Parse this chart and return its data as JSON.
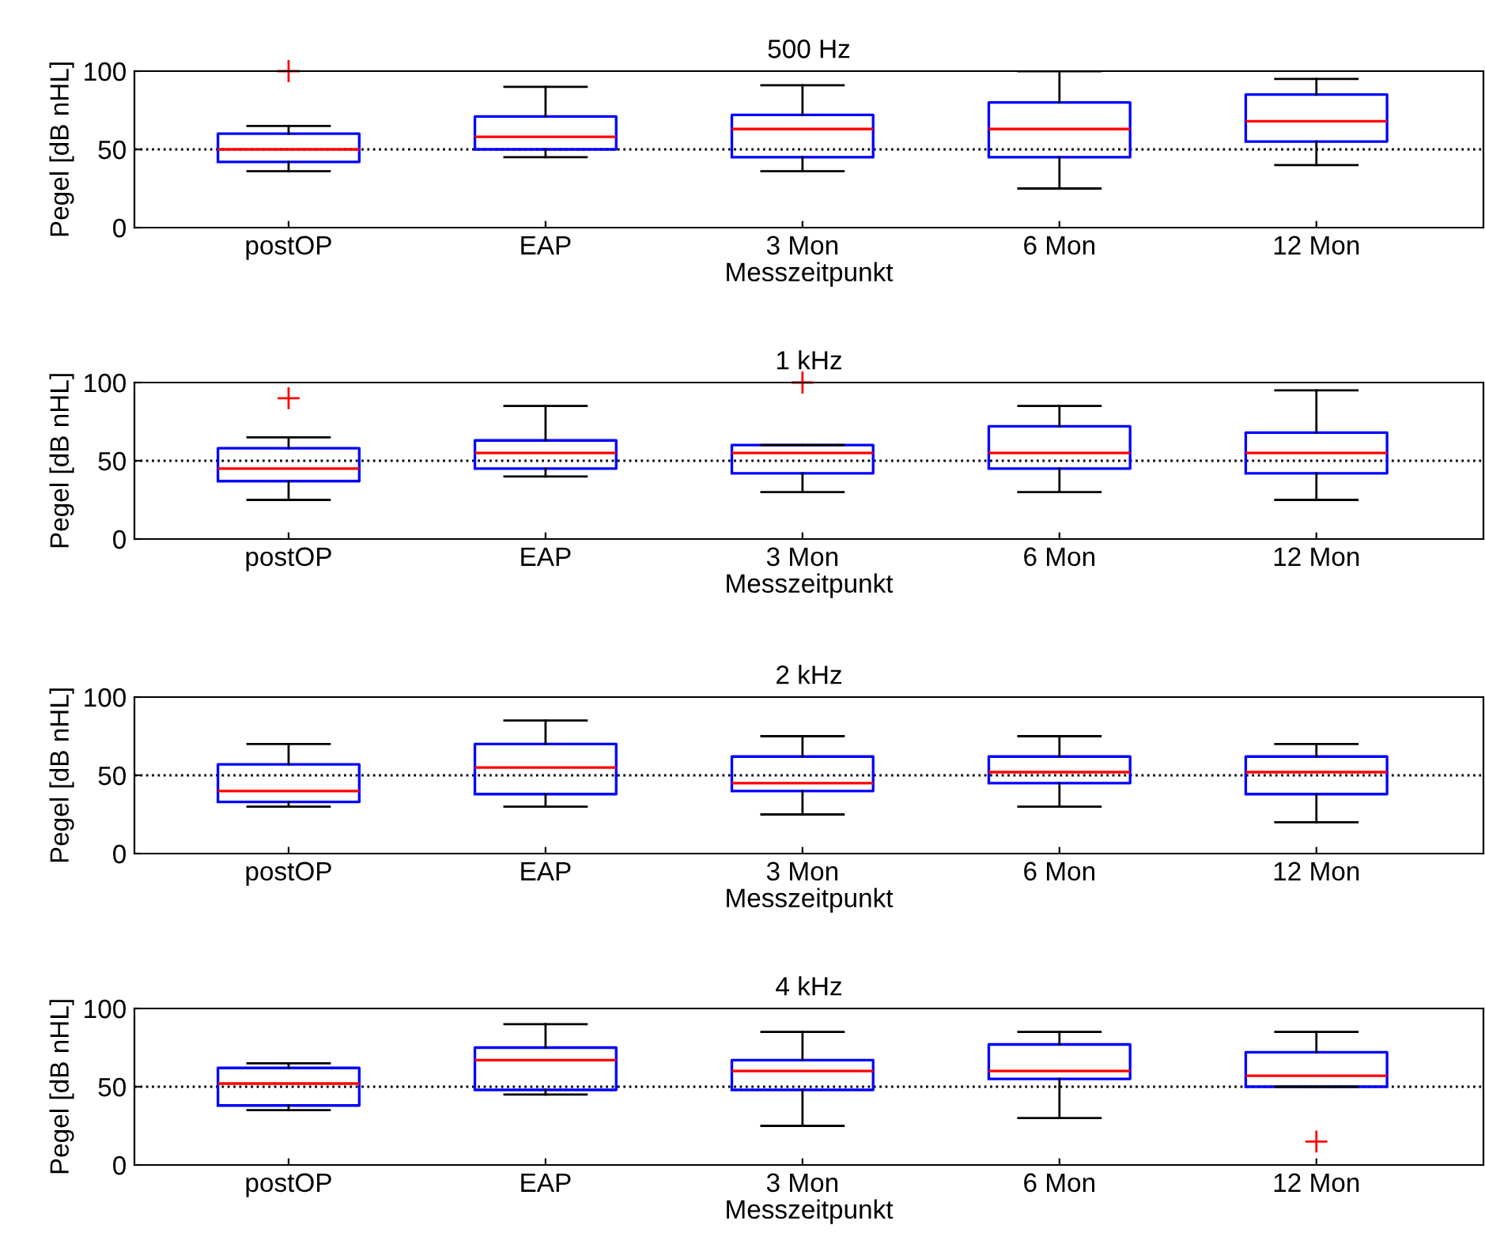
{
  "chart_data": [
    {
      "type": "box",
      "title": "500 Hz",
      "xlabel": "Messzeitpunkt",
      "ylabel": "Pegel [dB nHL]",
      "categories": [
        "postOP",
        "EAP",
        "3 Mon",
        "6 Mon",
        "12 Mon"
      ],
      "boxes": [
        {
          "low": 36,
          "q1": 42,
          "median": 50,
          "q3": 60,
          "high": 65,
          "outliers": [
            100
          ]
        },
        {
          "low": 45,
          "q1": 50,
          "median": 58,
          "q3": 71,
          "high": 90
        },
        {
          "low": 36,
          "q1": 45,
          "median": 63,
          "q3": 72,
          "high": 91
        },
        {
          "low": 25,
          "q1": 45,
          "median": 63,
          "q3": 80,
          "high": 100
        },
        {
          "low": 40,
          "q1": 55,
          "median": 68,
          "q3": 85,
          "high": 95
        }
      ],
      "ylim": [
        0,
        100
      ],
      "yticks": [
        0,
        50,
        100
      ],
      "grid": false,
      "ref_lines": [
        {
          "axis": "y",
          "value": 50,
          "color": "#000000",
          "line_style": "dotted"
        }
      ]
    },
    {
      "type": "box",
      "title": "1 kHz",
      "xlabel": "Messzeitpunkt",
      "ylabel": "Pegel [dB nHL]",
      "categories": [
        "postOP",
        "EAP",
        "3 Mon",
        "6 Mon",
        "12 Mon"
      ],
      "boxes": [
        {
          "low": 25,
          "q1": 37,
          "median": 45,
          "q3": 58,
          "high": 65,
          "outliers": [
            90
          ]
        },
        {
          "low": 40,
          "q1": 45,
          "median": 55,
          "q3": 63,
          "high": 85
        },
        {
          "low": 30,
          "q1": 42,
          "median": 55,
          "q3": 60,
          "high": 60,
          "outliers": [
            100
          ]
        },
        {
          "low": 30,
          "q1": 45,
          "median": 55,
          "q3": 72,
          "high": 85
        },
        {
          "low": 25,
          "q1": 42,
          "median": 55,
          "q3": 68,
          "high": 95
        }
      ],
      "ylim": [
        0,
        100
      ],
      "yticks": [
        0,
        50,
        100
      ],
      "grid": false,
      "ref_lines": [
        {
          "axis": "y",
          "value": 50,
          "color": "#000000",
          "line_style": "dotted"
        }
      ]
    },
    {
      "type": "box",
      "title": "2 kHz",
      "xlabel": "Messzeitpunkt",
      "ylabel": "Pegel [dB nHL]",
      "categories": [
        "postOP",
        "EAP",
        "3 Mon",
        "6 Mon",
        "12 Mon"
      ],
      "boxes": [
        {
          "low": 30,
          "q1": 33,
          "median": 40,
          "q3": 57,
          "high": 70
        },
        {
          "low": 30,
          "q1": 38,
          "median": 55,
          "q3": 70,
          "high": 85
        },
        {
          "low": 25,
          "q1": 40,
          "median": 45,
          "q3": 62,
          "high": 75
        },
        {
          "low": 30,
          "q1": 45,
          "median": 52,
          "q3": 62,
          "high": 75
        },
        {
          "low": 20,
          "q1": 38,
          "median": 52,
          "q3": 62,
          "high": 70
        }
      ],
      "ylim": [
        0,
        100
      ],
      "yticks": [
        0,
        50,
        100
      ],
      "grid": false,
      "ref_lines": [
        {
          "axis": "y",
          "value": 50,
          "color": "#000000",
          "line_style": "dotted"
        }
      ]
    },
    {
      "type": "box",
      "title": "4 kHz",
      "xlabel": "Messzeitpunkt",
      "ylabel": "Pegel [dB nHL]",
      "categories": [
        "postOP",
        "EAP",
        "3 Mon",
        "6 Mon",
        "12 Mon"
      ],
      "boxes": [
        {
          "low": 35,
          "q1": 38,
          "median": 52,
          "q3": 62,
          "high": 65
        },
        {
          "low": 45,
          "q1": 48,
          "median": 67,
          "q3": 75,
          "high": 90
        },
        {
          "low": 25,
          "q1": 48,
          "median": 60,
          "q3": 67,
          "high": 85
        },
        {
          "low": 30,
          "q1": 55,
          "median": 60,
          "q3": 77,
          "high": 85
        },
        {
          "low": 50,
          "q1": 50,
          "median": 57,
          "q3": 72,
          "high": 85,
          "outliers": [
            15
          ]
        }
      ],
      "ylim": [
        0,
        100
      ],
      "yticks": [
        0,
        50,
        100
      ],
      "grid": false,
      "ref_lines": [
        {
          "axis": "y",
          "value": 50,
          "color": "#000000",
          "line_style": "dotted"
        }
      ]
    }
  ]
}
